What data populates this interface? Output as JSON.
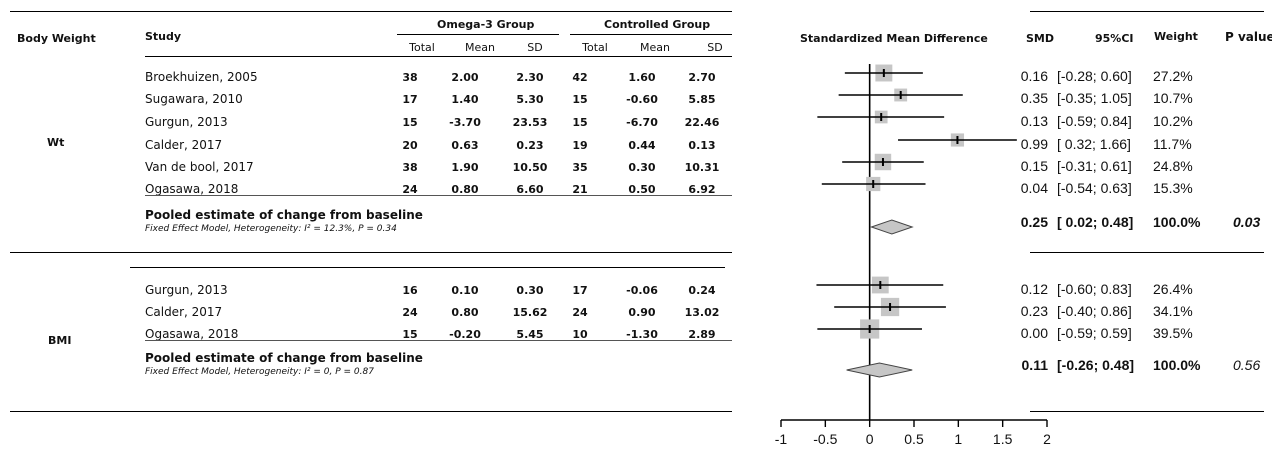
{
  "headers": {
    "body_weight": "Body Weight",
    "study": "Study",
    "omega_group": "Omega-3 Group",
    "controlled_group": "Controlled Group",
    "total": "Total",
    "mean": "Mean",
    "sd": "SD",
    "smd_title": "Standardized Mean Difference",
    "smd": "SMD",
    "ci": "95%CI",
    "weight": "Weight",
    "pvalue": "P value"
  },
  "groups": [
    {
      "name": "Wt",
      "studies": [
        {
          "study": "Broekhuizen, 2005",
          "t1": "38",
          "m1": "2.00",
          "s1": "2.30",
          "t2": "42",
          "m2": "1.60",
          "s2": "2.70",
          "smd": "0.16",
          "ci": "[-0.28; 0.60]",
          "weight": "27.2%"
        },
        {
          "study": "Sugawara, 2010",
          "t1": "17",
          "m1": "1.40",
          "s1": "5.30",
          "t2": "15",
          "m2": "-0.60",
          "s2": "5.85",
          "smd": "0.35",
          "ci": "[-0.35; 1.05]",
          "weight": "10.7%"
        },
        {
          "study": "Gurgun, 2013",
          "t1": "15",
          "m1": "-3.70",
          "s1": "23.53",
          "t2": "15",
          "m2": "-6.70",
          "s2": "22.46",
          "smd": "0.13",
          "ci": "[-0.59; 0.84]",
          "weight": "10.2%"
        },
        {
          "study": "Calder, 2017",
          "t1": "20",
          "m1": "0.63",
          "s1": "0.23",
          "t2": "19",
          "m2": "0.44",
          "s2": "0.13",
          "smd": "0.99",
          "ci": "[ 0.32; 1.66]",
          "weight": "11.7%"
        },
        {
          "study": "Van de bool, 2017",
          "t1": "38",
          "m1": "1.90",
          "s1": "10.50",
          "t2": "35",
          "m2": "0.30",
          "s2": "10.31",
          "smd": "0.15",
          "ci": "[-0.31; 0.61]",
          "weight": "24.8%"
        },
        {
          "study": "Ogasawa, 2018",
          "t1": "24",
          "m1": "0.80",
          "s1": "6.60",
          "t2": "21",
          "m2": "0.50",
          "s2": "6.92",
          "smd": "0.04",
          "ci": "[-0.54; 0.63]",
          "weight": "15.3%"
        }
      ],
      "pooled": {
        "title": "Pooled estimate of change from baseline",
        "subtitle": "Fixed Effect Model, Heterogeneity: I² = 12.3%, P = 0.34",
        "smd": "0.25",
        "ci": "[ 0.02; 0.48]",
        "weight": "100.0%",
        "p": "0.03"
      }
    },
    {
      "name": "BMI",
      "studies": [
        {
          "study": "Gurgun, 2013",
          "t1": "16",
          "m1": "0.10",
          "s1": "0.30",
          "t2": "17",
          "m2": "-0.06",
          "s2": "0.24",
          "smd": "0.12",
          "ci": "[-0.60; 0.83]",
          "weight": "26.4%"
        },
        {
          "study": "Calder, 2017",
          "t1": "24",
          "m1": "0.80",
          "s1": "15.62",
          "t2": "24",
          "m2": "0.90",
          "s2": "13.02",
          "smd": "0.23",
          "ci": "[-0.40; 0.86]",
          "weight": "34.1%"
        },
        {
          "study": "Ogasawa, 2018",
          "t1": "15",
          "m1": "-0.20",
          "s1": "5.45",
          "t2": "10",
          "m2": "-1.30",
          "s2": "2.89",
          "smd": "0.00",
          "ci": "[-0.59; 0.59]",
          "weight": "39.5%"
        }
      ],
      "pooled": {
        "title": "Pooled estimate of change from baseline",
        "subtitle": "Fixed Effect Model, Heterogeneity: I² = 0, P = 0.87",
        "smd": "0.11",
        "ci": "[-0.26; 0.48]",
        "weight": "100.0%",
        "p": "0.56"
      }
    }
  ],
  "chart_data": {
    "type": "forest",
    "xlim": [
      -1,
      2
    ],
    "ticks": [
      "-1",
      "-0.5",
      "0",
      "0.5",
      "1",
      "1.5",
      "2"
    ],
    "reference_line": 0,
    "points": [
      {
        "smd": 0.16,
        "lo": -0.28,
        "hi": 0.6,
        "weight": 27.2
      },
      {
        "smd": 0.35,
        "lo": -0.35,
        "hi": 1.05,
        "weight": 10.7
      },
      {
        "smd": 0.13,
        "lo": -0.59,
        "hi": 0.84,
        "weight": 10.2
      },
      {
        "smd": 0.99,
        "lo": 0.32,
        "hi": 1.66,
        "weight": 11.7
      },
      {
        "smd": 0.15,
        "lo": -0.31,
        "hi": 0.61,
        "weight": 24.8
      },
      {
        "smd": 0.04,
        "lo": -0.54,
        "hi": 0.63,
        "weight": 15.3
      },
      {
        "smd": 0.12,
        "lo": -0.6,
        "hi": 0.83,
        "weight": 26.4
      },
      {
        "smd": 0.23,
        "lo": -0.4,
        "hi": 0.86,
        "weight": 34.1
      },
      {
        "smd": 0.0,
        "lo": -0.59,
        "hi": 0.59,
        "weight": 39.5
      }
    ],
    "pooled": [
      {
        "smd": 0.25,
        "lo": 0.02,
        "hi": 0.48
      },
      {
        "smd": 0.11,
        "lo": -0.26,
        "hi": 0.48
      }
    ],
    "colors": {
      "box": "#c6c6c6",
      "diamond": "#c6c6c6",
      "line": "#000000"
    }
  }
}
